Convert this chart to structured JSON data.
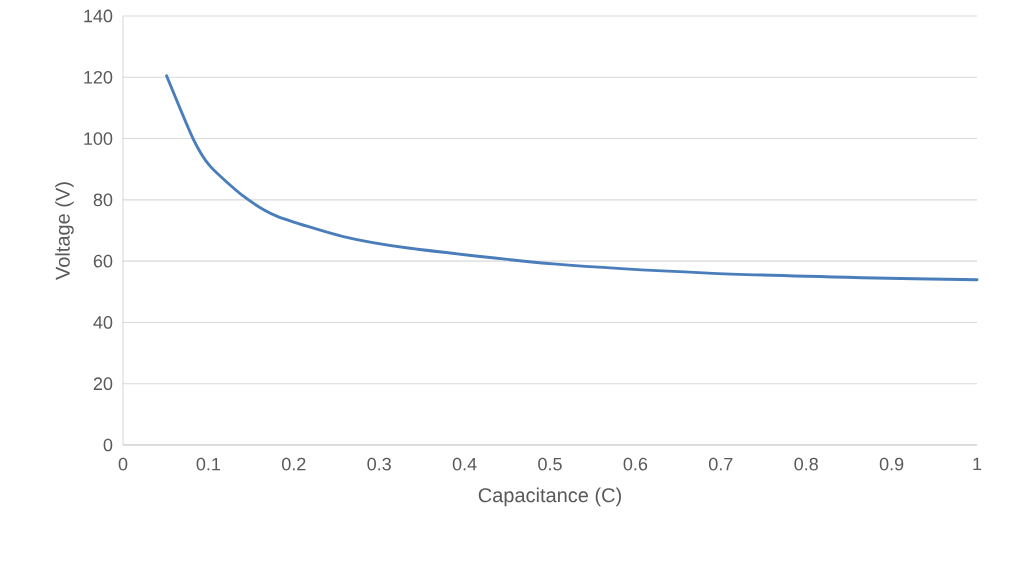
{
  "chart_data": {
    "type": "line",
    "xlabel": "Capacitance (C)",
    "ylabel": "Voltage (V)",
    "x": [
      0.051,
      0.082,
      0.102,
      0.141,
      0.18,
      0.258,
      0.336,
      0.504,
      0.685,
      0.865,
      1.0
    ],
    "series": [
      {
        "color": "#4a7ebb",
        "values": [
          120.5,
          100,
          91,
          81.2,
          74.7,
          68,
          64.2,
          59.1,
          56.1,
          54.6,
          53.9
        ]
      }
    ],
    "xlim": [
      0,
      1
    ],
    "ylim": [
      0,
      140
    ],
    "xticks": [
      0,
      0.1,
      0.2,
      0.3,
      0.4,
      0.5,
      0.6,
      0.7,
      0.8,
      0.9,
      1
    ],
    "yticks": [
      0,
      20,
      40,
      60,
      80,
      100,
      120,
      140
    ],
    "grid": "y",
    "marker": "none",
    "line_style": "solid"
  }
}
